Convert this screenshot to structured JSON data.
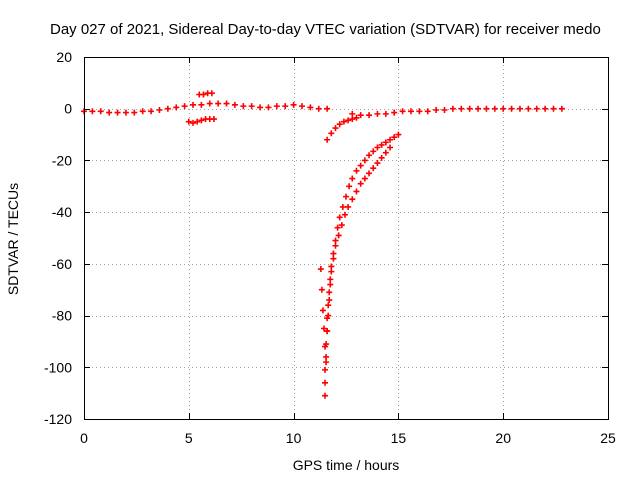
{
  "chart_data": {
    "type": "scatter",
    "title": "Day 027 of 2021, Sidereal Day-to-day VTEC variation (SDTVAR) for receiver medo",
    "xlabel": "GPS time / hours",
    "ylabel": "SDTVAR / TECUs",
    "xlim": [
      0,
      25
    ],
    "ylim": [
      -120,
      20
    ],
    "xticks": [
      0,
      5,
      10,
      15,
      20,
      25
    ],
    "yticks": [
      -120,
      -100,
      -80,
      -60,
      -40,
      -20,
      0,
      20
    ],
    "grid": true,
    "marker": "+",
    "color": "#ff0000",
    "series": [
      {
        "name": "baseline",
        "points": [
          [
            0.0,
            -1
          ],
          [
            0.4,
            -1
          ],
          [
            0.8,
            -1
          ],
          [
            1.2,
            -1.5
          ],
          [
            1.6,
            -1.5
          ],
          [
            2.0,
            -1.5
          ],
          [
            2.4,
            -1.5
          ],
          [
            2.8,
            -1
          ],
          [
            3.2,
            -1
          ],
          [
            3.6,
            -0.5
          ],
          [
            4.0,
            0
          ],
          [
            4.4,
            0.5
          ],
          [
            4.8,
            1
          ],
          [
            5.2,
            1.5
          ],
          [
            5.6,
            1.5
          ],
          [
            6.0,
            2
          ],
          [
            6.4,
            2
          ],
          [
            6.8,
            2
          ],
          [
            7.2,
            1.5
          ],
          [
            7.6,
            1
          ],
          [
            8.0,
            1
          ],
          [
            8.4,
            0.5
          ],
          [
            8.8,
            0.5
          ],
          [
            9.2,
            1
          ],
          [
            9.6,
            1
          ],
          [
            10.0,
            1.5
          ],
          [
            10.4,
            1
          ],
          [
            10.8,
            0.5
          ],
          [
            11.2,
            0
          ],
          [
            11.6,
            0
          ],
          [
            12.8,
            -2
          ],
          [
            13.2,
            -2.5
          ],
          [
            13.6,
            -2.5
          ],
          [
            14.0,
            -2
          ],
          [
            14.4,
            -2
          ],
          [
            14.8,
            -1.5
          ],
          [
            15.2,
            -1
          ],
          [
            15.6,
            -1
          ],
          [
            16.0,
            -1
          ],
          [
            16.4,
            -1
          ],
          [
            16.8,
            -0.5
          ],
          [
            17.2,
            -0.5
          ],
          [
            17.6,
            0
          ],
          [
            18.0,
            0
          ],
          [
            18.4,
            0
          ],
          [
            18.8,
            0
          ],
          [
            19.2,
            0
          ],
          [
            19.6,
            0
          ],
          [
            20.0,
            0
          ],
          [
            20.4,
            0
          ],
          [
            20.8,
            0
          ],
          [
            21.2,
            0
          ],
          [
            21.6,
            0
          ],
          [
            22.0,
            0
          ],
          [
            22.4,
            0
          ],
          [
            22.8,
            0
          ]
        ]
      },
      {
        "name": "cluster-5h-upper",
        "points": [
          [
            5.5,
            5.5
          ],
          [
            5.7,
            5.5
          ],
          [
            5.9,
            6
          ],
          [
            6.1,
            6
          ]
        ]
      },
      {
        "name": "cluster-5h-lower",
        "points": [
          [
            5.0,
            -5
          ],
          [
            5.2,
            -5.5
          ],
          [
            5.4,
            -5
          ],
          [
            5.6,
            -4.5
          ],
          [
            5.8,
            -4
          ],
          [
            6.0,
            -4
          ],
          [
            6.2,
            -4
          ]
        ]
      },
      {
        "name": "branch-11-14",
        "points": [
          [
            11.6,
            -12
          ],
          [
            11.8,
            -9.5
          ],
          [
            12.0,
            -7.5
          ],
          [
            12.2,
            -6
          ],
          [
            12.4,
            -5
          ],
          [
            12.6,
            -4.5
          ],
          [
            12.8,
            -4
          ],
          [
            13.0,
            -3.5
          ]
        ]
      },
      {
        "name": "dip-outer",
        "points": [
          [
            11.5,
            -111
          ],
          [
            11.5,
            -106
          ],
          [
            11.5,
            -101
          ],
          [
            11.55,
            -96
          ],
          [
            11.55,
            -91
          ],
          [
            11.6,
            -86
          ],
          [
            11.6,
            -81
          ],
          [
            11.65,
            -76
          ],
          [
            11.7,
            -71
          ],
          [
            11.75,
            -66
          ],
          [
            11.8,
            -61
          ],
          [
            11.9,
            -56
          ],
          [
            12.0,
            -51
          ],
          [
            12.1,
            -46
          ],
          [
            12.2,
            -42
          ],
          [
            12.35,
            -38
          ],
          [
            12.5,
            -34
          ],
          [
            12.65,
            -30
          ],
          [
            12.8,
            -27
          ],
          [
            13.0,
            -24
          ],
          [
            13.2,
            -22
          ],
          [
            13.4,
            -20
          ],
          [
            13.6,
            -18
          ],
          [
            13.8,
            -16.5
          ],
          [
            14.0,
            -15
          ],
          [
            14.2,
            -14
          ],
          [
            14.4,
            -13
          ],
          [
            14.6,
            -12
          ],
          [
            14.8,
            -11
          ],
          [
            15.0,
            -10
          ]
        ]
      },
      {
        "name": "dip-inner",
        "points": [
          [
            11.6,
            -86
          ],
          [
            11.65,
            -80
          ],
          [
            11.7,
            -74
          ],
          [
            11.75,
            -68
          ],
          [
            11.8,
            -63
          ],
          [
            11.9,
            -58
          ],
          [
            12.0,
            -53
          ],
          [
            12.15,
            -49
          ],
          [
            12.3,
            -45
          ],
          [
            12.45,
            -41
          ],
          [
            12.6,
            -38
          ],
          [
            12.8,
            -35
          ],
          [
            13.0,
            -32
          ],
          [
            13.2,
            -29
          ],
          [
            13.4,
            -27
          ],
          [
            13.6,
            -25
          ],
          [
            13.8,
            -23
          ],
          [
            14.0,
            -21
          ],
          [
            14.2,
            -19
          ],
          [
            14.4,
            -17
          ],
          [
            14.6,
            -15
          ]
        ]
      },
      {
        "name": "dip-left-scatter",
        "points": [
          [
            11.3,
            -62
          ],
          [
            11.35,
            -70
          ],
          [
            11.4,
            -78
          ],
          [
            11.45,
            -85
          ],
          [
            11.5,
            -92
          ],
          [
            11.55,
            -98
          ]
        ]
      }
    ]
  }
}
